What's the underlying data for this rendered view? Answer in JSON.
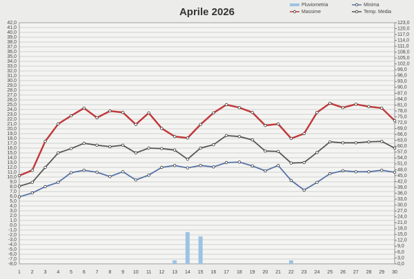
{
  "chart_data": {
    "type": "line",
    "title": "Aprile 2026",
    "categories": [
      "1",
      "2",
      "3",
      "4",
      "5",
      "6",
      "7",
      "8",
      "9",
      "10",
      "11",
      "12",
      "13",
      "14",
      "15",
      "16",
      "17",
      "18",
      "19",
      "20",
      "21",
      "22",
      "23",
      "24",
      "25",
      "26",
      "27",
      "28",
      "29",
      "30"
    ],
    "series": [
      {
        "name": "Pluviometria",
        "type": "bar",
        "axis": "y2",
        "color": "#9cc3e4",
        "values": [
          0,
          0,
          0,
          0,
          0,
          0,
          0,
          0,
          0,
          0,
          0,
          0,
          1.8,
          16.2,
          14,
          0,
          0,
          0,
          0,
          0,
          0,
          1.8,
          0,
          0,
          0,
          0,
          0,
          0,
          0,
          0
        ]
      },
      {
        "name": "Minima",
        "color": "#5472a8",
        "values": [
          5.9,
          6.7,
          8,
          8.9,
          10.9,
          11.4,
          11,
          10.1,
          11.1,
          9.4,
          10.4,
          12,
          12.4,
          11.9,
          12.4,
          12.1,
          13,
          13.1,
          12.3,
          11.3,
          12.4,
          9.3,
          7.3,
          8.9,
          10.7,
          11.3,
          11.1,
          11.1,
          11.4,
          11
        ]
      },
      {
        "name": "Massime",
        "color": "#c0393b",
        "values": [
          10.3,
          11.4,
          17.4,
          21,
          22.7,
          24.3,
          22.3,
          23.7,
          23.4,
          20.9,
          23.3,
          20.1,
          18.4,
          18.1,
          20.9,
          23.3,
          25,
          24.4,
          23.4,
          20.7,
          21,
          18,
          19,
          23.4,
          25.3,
          24.4,
          25.1,
          24.6,
          24.3,
          21.7
        ]
      },
      {
        "name": "Temp. Media",
        "color": "#555555",
        "values": [
          8.1,
          8.9,
          12,
          15,
          15.9,
          17,
          16.6,
          16.3,
          16.6,
          15,
          16,
          15.9,
          15.6,
          13.7,
          16,
          16.7,
          18.6,
          18.4,
          17.7,
          15.4,
          15.3,
          12.9,
          13,
          15.1,
          17.3,
          17.1,
          17.1,
          17.3,
          17.4,
          16
        ]
      }
    ],
    "ylim": [
      -8,
      42
    ],
    "yticks": [
      {
        "value": -8,
        "label": "-8,0"
      },
      {
        "value": -7,
        "label": "-7,0"
      },
      {
        "value": -6,
        "label": "-6,0"
      },
      {
        "value": -5,
        "label": "-5,0"
      },
      {
        "value": -4,
        "label": "-4,0"
      },
      {
        "value": -3,
        "label": "-3,0"
      },
      {
        "value": -2,
        "label": "-2,0"
      },
      {
        "value": -1,
        "label": "-1,0"
      },
      {
        "value": 0,
        "label": "0,0"
      },
      {
        "value": 1,
        "label": "1,0"
      },
      {
        "value": 2,
        "label": "2,0"
      },
      {
        "value": 3,
        "label": "3,0"
      },
      {
        "value": 4,
        "label": "4,0"
      },
      {
        "value": 5,
        "label": "5,0"
      },
      {
        "value": 6,
        "label": "6,0"
      },
      {
        "value": 7,
        "label": "7,0"
      },
      {
        "value": 8,
        "label": "8,0"
      },
      {
        "value": 9,
        "label": "9,0"
      },
      {
        "value": 10,
        "label": "10,0"
      },
      {
        "value": 11,
        "label": "11,0"
      },
      {
        "value": 12,
        "label": "12,0"
      },
      {
        "value": 13,
        "label": "13,0"
      },
      {
        "value": 14,
        "label": "14,0"
      },
      {
        "value": 15,
        "label": "15,0"
      },
      {
        "value": 16,
        "label": "16,0"
      },
      {
        "value": 17,
        "label": "17,0"
      },
      {
        "value": 18,
        "label": "18,0"
      },
      {
        "value": 19,
        "label": "19,0"
      },
      {
        "value": 20,
        "label": "20,0"
      },
      {
        "value": 21,
        "label": "21,0"
      },
      {
        "value": 22,
        "label": "22,0"
      },
      {
        "value": 23,
        "label": "23,0"
      },
      {
        "value": 24,
        "label": "24,0"
      },
      {
        "value": 25,
        "label": "25,0"
      },
      {
        "value": 26,
        "label": "26,0"
      },
      {
        "value": 27,
        "label": "27,0"
      },
      {
        "value": 28,
        "label": "28,0"
      },
      {
        "value": 29,
        "label": "29,0"
      },
      {
        "value": 30,
        "label": "30,0"
      },
      {
        "value": 31,
        "label": "31,0"
      },
      {
        "value": 32,
        "label": "32,0"
      },
      {
        "value": 33,
        "label": "33,0"
      },
      {
        "value": 34,
        "label": "34,0"
      },
      {
        "value": 35,
        "label": "35,0"
      },
      {
        "value": 36,
        "label": "36,0"
      },
      {
        "value": 37,
        "label": "37,0"
      },
      {
        "value": 38,
        "label": "38,0"
      },
      {
        "value": 39,
        "label": "39,0"
      },
      {
        "value": 40,
        "label": "40,0"
      },
      {
        "value": 41,
        "label": "41,0"
      },
      {
        "value": 42,
        "label": "42,0"
      }
    ],
    "y2lim": [
      0,
      123
    ],
    "y2ticks": [
      {
        "value": 0,
        "label": "0,0"
      },
      {
        "value": 3,
        "label": "3,0"
      },
      {
        "value": 6,
        "label": "6,0"
      },
      {
        "value": 9,
        "label": "9,0"
      },
      {
        "value": 12,
        "label": "12,0"
      },
      {
        "value": 15,
        "label": "15,0"
      },
      {
        "value": 18,
        "label": "18,0"
      },
      {
        "value": 21,
        "label": "21,0"
      },
      {
        "value": 24,
        "label": "24,0"
      },
      {
        "value": 27,
        "label": "27,0"
      },
      {
        "value": 30,
        "label": "30,0"
      },
      {
        "value": 33,
        "label": "33,0"
      },
      {
        "value": 36,
        "label": "36,0"
      },
      {
        "value": 39,
        "label": "39,0"
      },
      {
        "value": 42,
        "label": "42,0"
      },
      {
        "value": 45,
        "label": "45,0"
      },
      {
        "value": 48,
        "label": "48,0"
      },
      {
        "value": 51,
        "label": "51,0"
      },
      {
        "value": 54,
        "label": "54,0"
      },
      {
        "value": 57,
        "label": "57,0"
      },
      {
        "value": 60,
        "label": "60,0"
      },
      {
        "value": 63,
        "label": "63,0"
      },
      {
        "value": 66,
        "label": "66,0"
      },
      {
        "value": 69,
        "label": "69,0"
      },
      {
        "value": 72,
        "label": "72,0"
      },
      {
        "value": 75,
        "label": "75,0"
      },
      {
        "value": 78,
        "label": "78,0"
      },
      {
        "value": 81,
        "label": "81,0"
      },
      {
        "value": 84,
        "label": "84,0"
      },
      {
        "value": 87,
        "label": "87,0"
      },
      {
        "value": 90,
        "label": "90,0"
      },
      {
        "value": 93,
        "label": "93,0"
      },
      {
        "value": 96,
        "label": "96,0"
      },
      {
        "value": 99,
        "label": "99,0"
      },
      {
        "value": 102,
        "label": "102,0"
      },
      {
        "value": 105,
        "label": "105,0"
      },
      {
        "value": 108,
        "label": "108,0"
      },
      {
        "value": 111,
        "label": "111,0"
      },
      {
        "value": 114,
        "label": "114,0"
      },
      {
        "value": 117,
        "label": "117,0"
      },
      {
        "value": 120,
        "label": "120,0"
      },
      {
        "value": 123,
        "label": "123,0"
      }
    ],
    "grid": true
  }
}
